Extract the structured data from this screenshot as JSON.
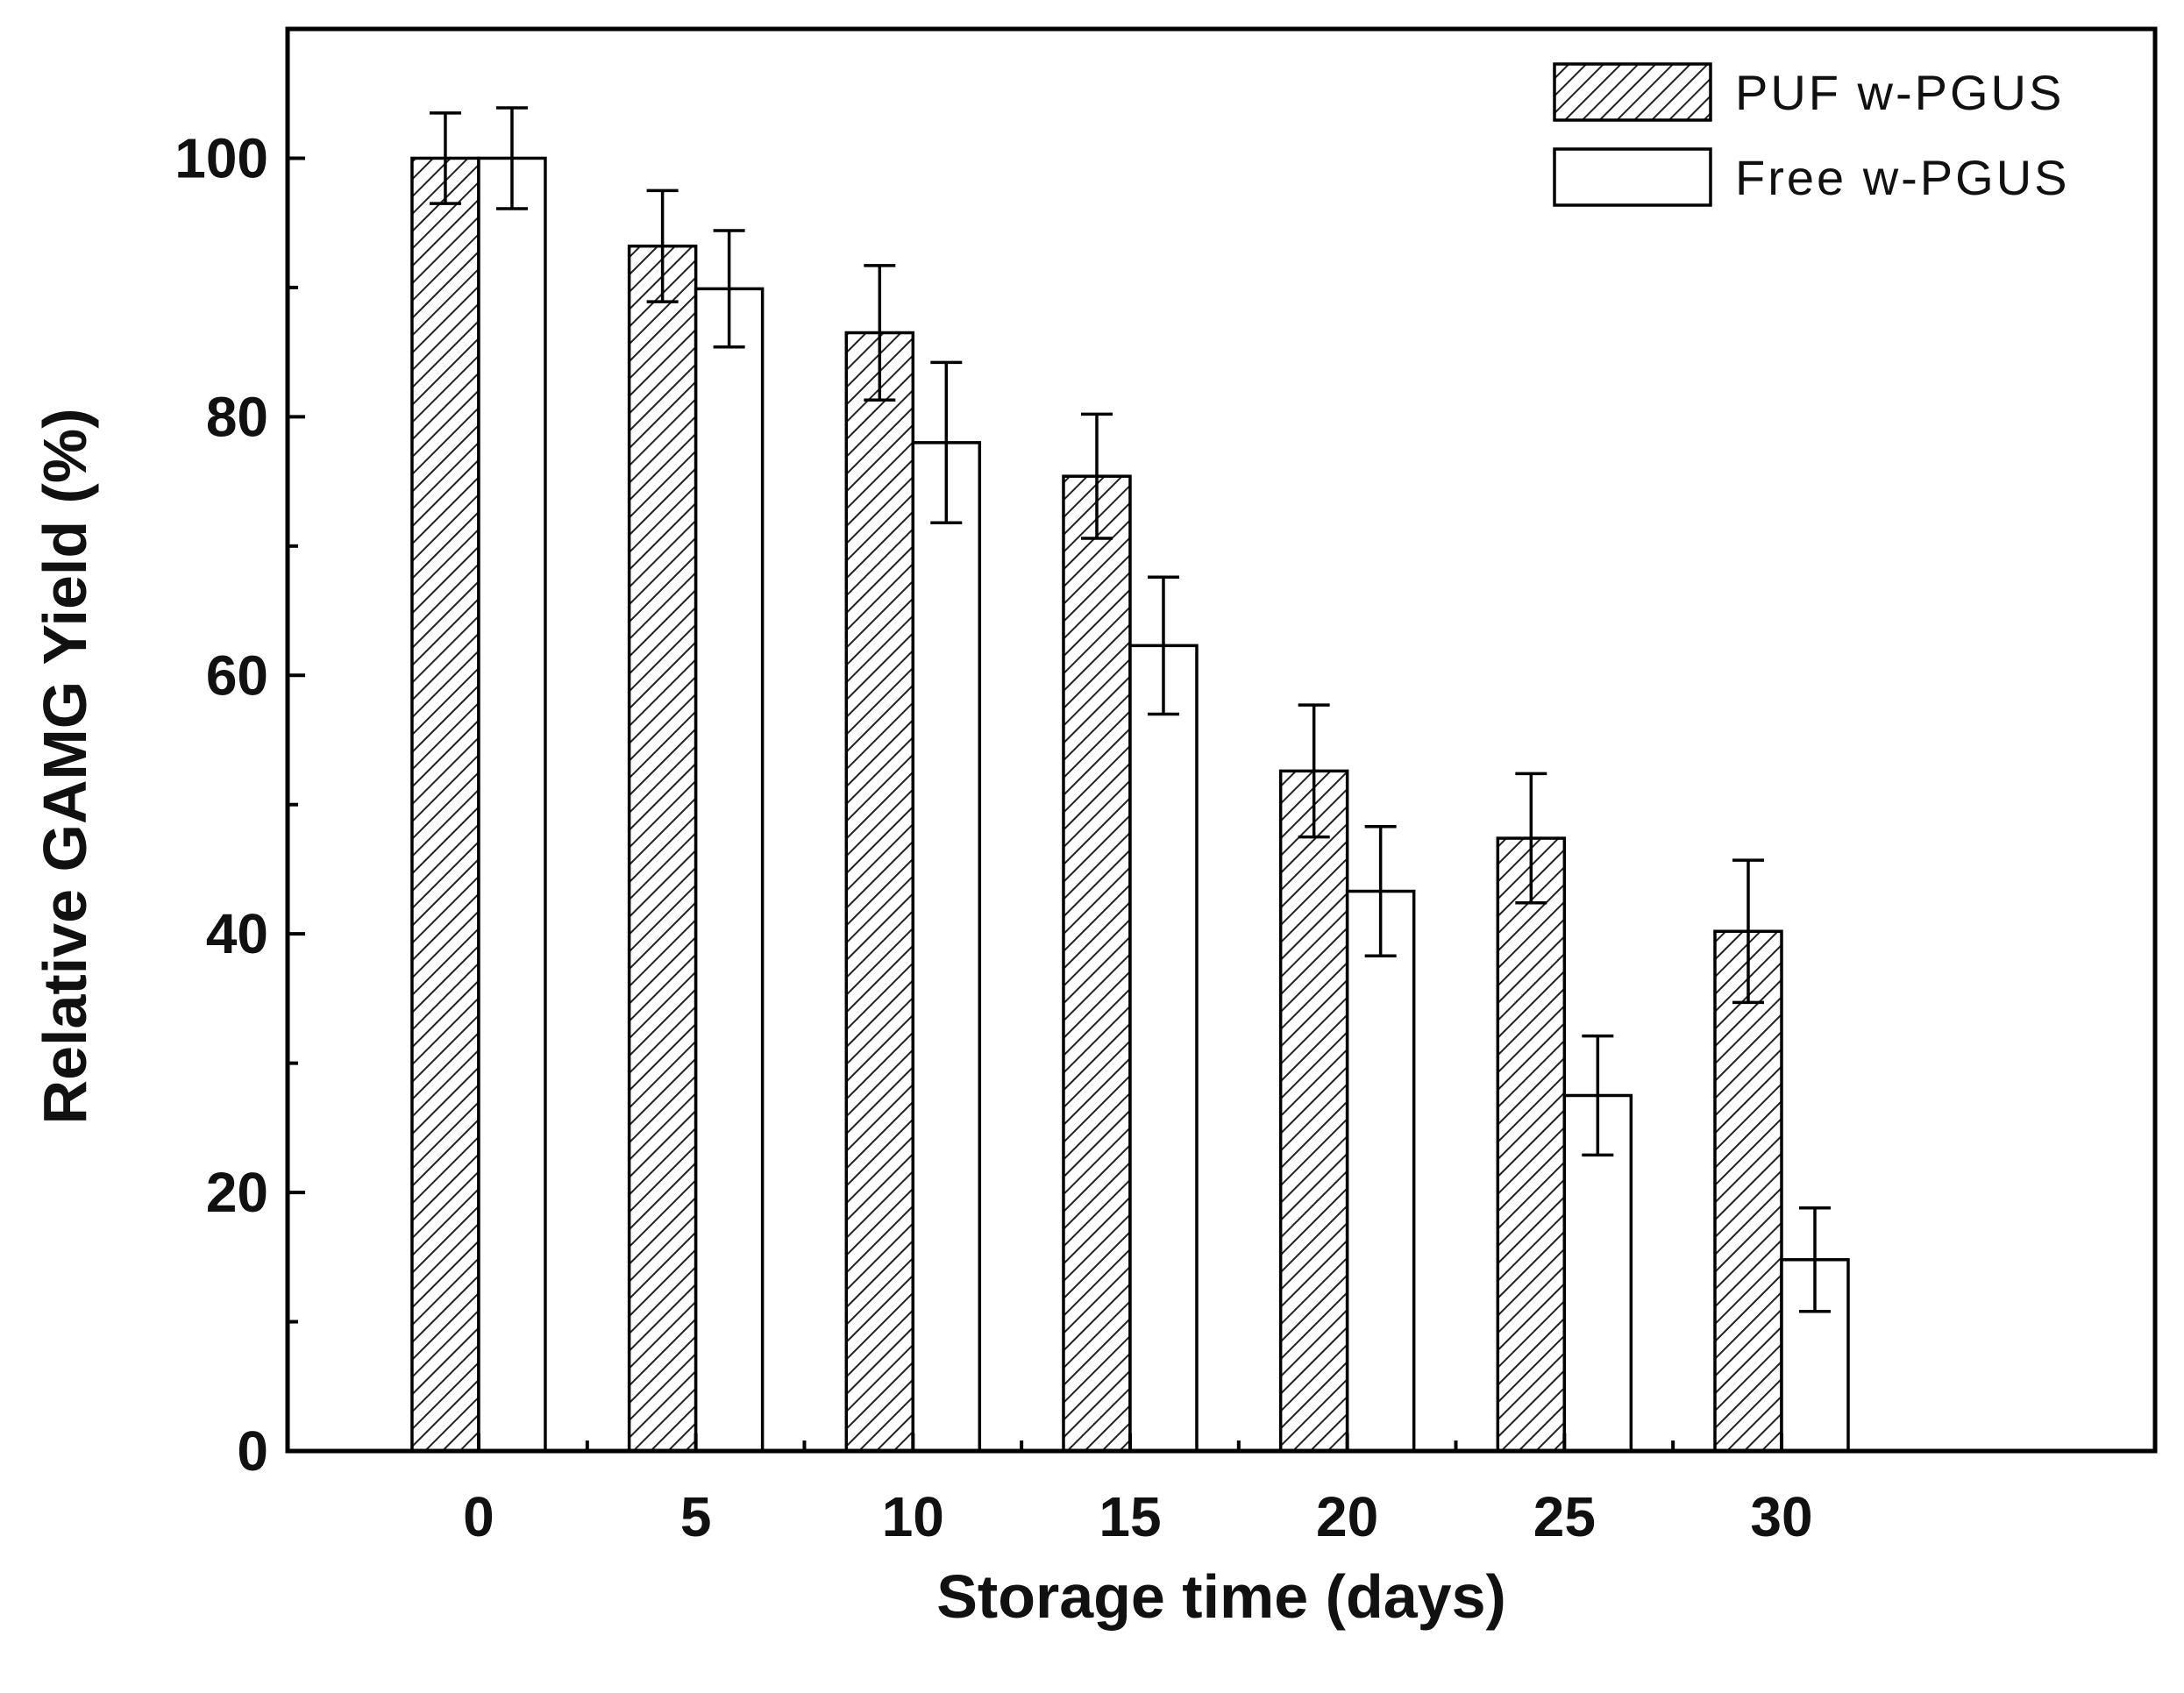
{
  "chart_data": {
    "type": "bar",
    "title": "",
    "xlabel": "Storage time (days)",
    "ylabel": "Relative GAMG Yield (%)",
    "categories": [
      "0",
      "5",
      "10",
      "15",
      "20",
      "25",
      "30"
    ],
    "ylim": [
      0,
      110
    ],
    "yticks": [
      0,
      20,
      40,
      60,
      80,
      100
    ],
    "grid": false,
    "legend_position": "top-right",
    "series": [
      {
        "name": "PUF w-PGUS",
        "fill": "hatched",
        "color": "#000000",
        "values": [
          100,
          93.2,
          86.5,
          75.4,
          52.6,
          47.4,
          40.2
        ],
        "errors": [
          3.5,
          4.3,
          5.2,
          4.8,
          5.1,
          5.0,
          5.5
        ]
      },
      {
        "name": "Free w-PGUS",
        "fill": "white",
        "color": "#000000",
        "values": [
          100,
          89.9,
          78.0,
          62.3,
          43.3,
          27.5,
          14.8
        ],
        "errors": [
          3.9,
          4.5,
          6.2,
          5.3,
          5.0,
          4.6,
          4.0
        ]
      }
    ]
  }
}
